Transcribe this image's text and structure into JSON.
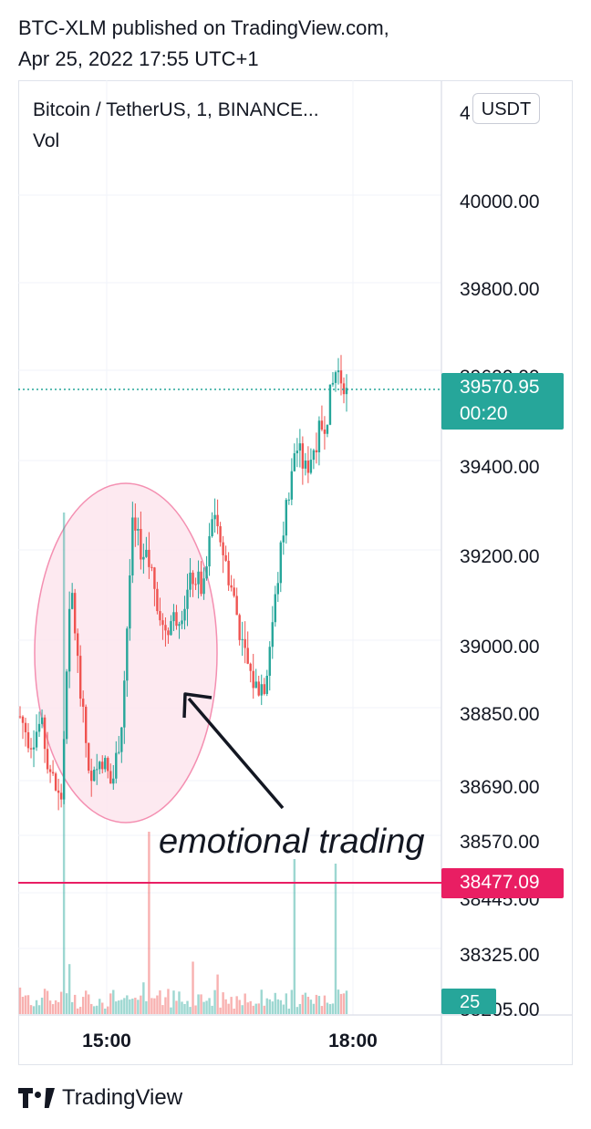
{
  "header": {
    "line1": "BTC-XLM published on TradingView.com,",
    "line2": "Apr 25, 2022 17:55 UTC+1"
  },
  "legend": {
    "symbol": "Bitcoin / TetherUS, 1, BINANCE...",
    "volume_label": "Vol"
  },
  "unit_badge": "USDT",
  "price_tags": {
    "last_price": "39570.95",
    "countdown": "00:20",
    "red_line": "38477.09",
    "volume": "25"
  },
  "annotation": {
    "text": "emotional trading"
  },
  "footer": {
    "brand": "TradingView"
  },
  "colors": {
    "up": "#26a69a",
    "down": "#ef5350",
    "red_line": "#e91e63",
    "ellipse_fill": "#fce4ec",
    "ellipse_stroke": "#f48fb1"
  },
  "chart_data": {
    "type": "candlestick",
    "axis_labels": [
      "4",
      "40000.00",
      "39800.00",
      "39600.00",
      "39400.00",
      "39200.00",
      "39000.00",
      "38850.00",
      "38690.00",
      "38570.00",
      "38445.00",
      "38325.00",
      "38205.00"
    ],
    "x_ticks": [
      "15:00",
      "18:00"
    ],
    "last_price": 39570.95,
    "horizontal_line": 38477.09,
    "price_path": [
      38845,
      38790,
      38830,
      38720,
      38650,
      39140,
      38870,
      38690,
      38760,
      38690,
      38840,
      39260,
      39210,
      39160,
      39040,
      39060,
      39090,
      39160,
      39120,
      39310,
      39200,
      39100,
      38980,
      38910,
      38920,
      39100,
      39300,
      39450,
      39390,
      39460,
      39510,
      39620,
      39570
    ]
  }
}
